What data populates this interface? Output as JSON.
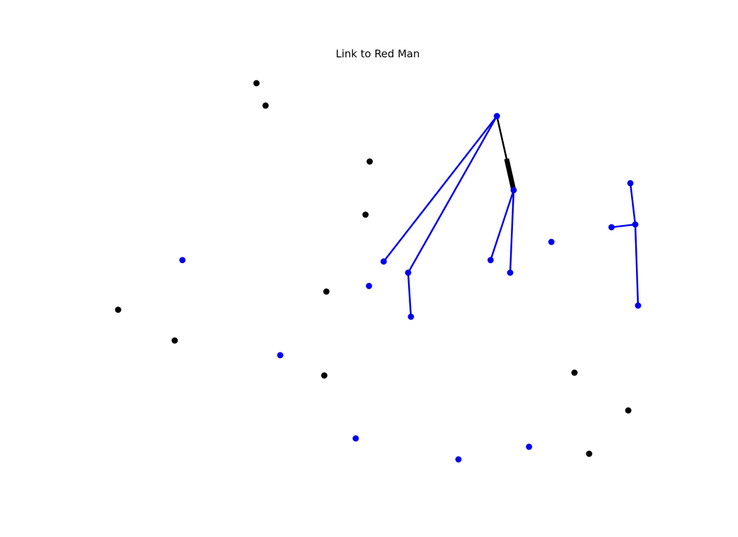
{
  "title": "Link to Red Man",
  "colors": {
    "blue": "#0000ee",
    "black": "#000000"
  },
  "nodes": [
    {
      "id": "n1",
      "color": "blue"
    },
    {
      "id": "n2",
      "color": "blue"
    },
    {
      "id": "n3",
      "color": "blue"
    },
    {
      "id": "n4",
      "color": "blue"
    },
    {
      "id": "n5",
      "color": "blue"
    },
    {
      "id": "n6",
      "color": "blue"
    },
    {
      "id": "n7",
      "color": "blue"
    },
    {
      "id": "n8",
      "color": "blue"
    },
    {
      "id": "n9",
      "color": "blue"
    },
    {
      "id": "n10",
      "color": "blue"
    },
    {
      "id": "n11",
      "color": "blue"
    },
    {
      "id": "n12",
      "color": "blue"
    },
    {
      "id": "n13",
      "color": "blue"
    },
    {
      "id": "n14",
      "color": "blue"
    },
    {
      "id": "n15",
      "color": "blue"
    },
    {
      "id": "n16",
      "color": "blue"
    },
    {
      "id": "n17",
      "color": "blue"
    },
    {
      "id": "n18",
      "color": "blue"
    },
    {
      "id": "n19",
      "color": "black"
    },
    {
      "id": "n20",
      "color": "black"
    },
    {
      "id": "n21",
      "color": "black"
    },
    {
      "id": "n22",
      "color": "black"
    },
    {
      "id": "n23",
      "color": "black"
    },
    {
      "id": "n24",
      "color": "black"
    },
    {
      "id": "n25",
      "color": "black"
    },
    {
      "id": "n26",
      "color": "black"
    },
    {
      "id": "n27",
      "color": "black"
    },
    {
      "id": "n28",
      "color": "black"
    },
    {
      "id": "n29",
      "color": "black"
    }
  ],
  "edges": [
    {
      "from": "n1",
      "to": "n2",
      "color": "black",
      "directed": true
    },
    {
      "from": "n1",
      "to": "n3",
      "color": "blue"
    },
    {
      "from": "n1",
      "to": "n4",
      "color": "blue"
    },
    {
      "from": "n4",
      "to": "n5",
      "color": "blue"
    },
    {
      "from": "n2",
      "to": "n6",
      "color": "blue"
    },
    {
      "from": "n2",
      "to": "n7",
      "color": "blue"
    },
    {
      "from": "n8",
      "to": "n9",
      "color": "blue"
    },
    {
      "from": "n10",
      "to": "n9",
      "color": "blue"
    },
    {
      "from": "n9",
      "to": "n11",
      "color": "blue"
    }
  ]
}
